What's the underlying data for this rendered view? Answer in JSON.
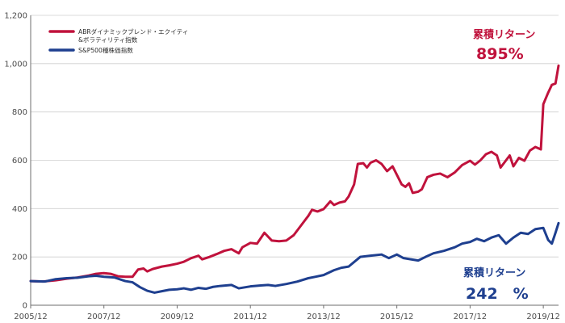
{
  "chart_data": {
    "type": "line",
    "title": "",
    "xlabel": "",
    "ylabel": "",
    "ylim": [
      0,
      1200
    ],
    "y_ticks": [
      0,
      200,
      400,
      600,
      800,
      1000,
      1200
    ],
    "y_tick_labels": [
      "0",
      "200",
      "400",
      "600",
      "800",
      "1,000",
      "1,200"
    ],
    "x_range": [
      2005.917,
      2020.333
    ],
    "x_ticks": [
      2005.917,
      2007.917,
      2009.917,
      2011.917,
      2013.917,
      2015.917,
      2017.917,
      2019.917
    ],
    "x_tick_labels": [
      "2005/12",
      "2007/12",
      "2009/12",
      "2011/12",
      "2013/12",
      "2015/12",
      "2017/12",
      "2019/12"
    ],
    "grid": "horizontal",
    "legend_position": "top-left",
    "series": [
      {
        "name": "ABRダイナミックブレンド・エクイティ＆ボラティリティ指数",
        "color": "#c0123c",
        "points": [
          [
            2005.917,
            100
          ],
          [
            2006.25,
            98
          ],
          [
            2006.6,
            103
          ],
          [
            2006.9,
            110
          ],
          [
            2007.2,
            115
          ],
          [
            2007.5,
            123
          ],
          [
            2007.7,
            130
          ],
          [
            2007.917,
            133
          ],
          [
            2008.1,
            130
          ],
          [
            2008.3,
            120
          ],
          [
            2008.5,
            118
          ],
          [
            2008.7,
            118
          ],
          [
            2008.85,
            148
          ],
          [
            2009.0,
            152
          ],
          [
            2009.1,
            140
          ],
          [
            2009.25,
            150
          ],
          [
            2009.5,
            160
          ],
          [
            2009.7,
            165
          ],
          [
            2009.917,
            172
          ],
          [
            2010.1,
            180
          ],
          [
            2010.3,
            195
          ],
          [
            2010.5,
            205
          ],
          [
            2010.6,
            190
          ],
          [
            2010.8,
            200
          ],
          [
            2011.0,
            212
          ],
          [
            2011.2,
            225
          ],
          [
            2011.4,
            232
          ],
          [
            2011.6,
            215
          ],
          [
            2011.7,
            240
          ],
          [
            2011.917,
            258
          ],
          [
            2012.1,
            255
          ],
          [
            2012.3,
            300
          ],
          [
            2012.5,
            268
          ],
          [
            2012.7,
            265
          ],
          [
            2012.9,
            268
          ],
          [
            2013.1,
            290
          ],
          [
            2013.3,
            330
          ],
          [
            2013.5,
            370
          ],
          [
            2013.6,
            395
          ],
          [
            2013.75,
            388
          ],
          [
            2013.917,
            398
          ],
          [
            2014.1,
            430
          ],
          [
            2014.2,
            415
          ],
          [
            2014.35,
            425
          ],
          [
            2014.5,
            430
          ],
          [
            2014.6,
            450
          ],
          [
            2014.75,
            500
          ],
          [
            2014.85,
            585
          ],
          [
            2015.0,
            588
          ],
          [
            2015.1,
            570
          ],
          [
            2015.2,
            590
          ],
          [
            2015.35,
            600
          ],
          [
            2015.5,
            585
          ],
          [
            2015.65,
            555
          ],
          [
            2015.8,
            575
          ],
          [
            2015.917,
            540
          ],
          [
            2016.05,
            500
          ],
          [
            2016.15,
            490
          ],
          [
            2016.25,
            505
          ],
          [
            2016.35,
            465
          ],
          [
            2016.5,
            470
          ],
          [
            2016.6,
            480
          ],
          [
            2016.75,
            530
          ],
          [
            2016.917,
            540
          ],
          [
            2017.1,
            545
          ],
          [
            2017.3,
            530
          ],
          [
            2017.5,
            550
          ],
          [
            2017.7,
            580
          ],
          [
            2017.917,
            598
          ],
          [
            2018.05,
            582
          ],
          [
            2018.2,
            600
          ],
          [
            2018.35,
            625
          ],
          [
            2018.5,
            635
          ],
          [
            2018.65,
            620
          ],
          [
            2018.75,
            570
          ],
          [
            2018.85,
            590
          ],
          [
            2019.0,
            620
          ],
          [
            2019.1,
            575
          ],
          [
            2019.25,
            610
          ],
          [
            2019.4,
            598
          ],
          [
            2019.55,
            640
          ],
          [
            2019.7,
            655
          ],
          [
            2019.85,
            645
          ],
          [
            2019.917,
            832
          ],
          [
            2020.05,
            880
          ],
          [
            2020.15,
            912
          ],
          [
            2020.25,
            918
          ],
          [
            2020.333,
            992
          ]
        ]
      },
      {
        "name": "S&P500種株価指数",
        "color": "#1e3f8f",
        "points": [
          [
            2005.917,
            100
          ],
          [
            2006.3,
            98
          ],
          [
            2006.6,
            108
          ],
          [
            2006.9,
            112
          ],
          [
            2007.2,
            114
          ],
          [
            2007.5,
            120
          ],
          [
            2007.7,
            122
          ],
          [
            2007.917,
            118
          ],
          [
            2008.2,
            115
          ],
          [
            2008.5,
            100
          ],
          [
            2008.7,
            95
          ],
          [
            2008.9,
            75
          ],
          [
            2009.1,
            60
          ],
          [
            2009.3,
            52
          ],
          [
            2009.5,
            58
          ],
          [
            2009.7,
            64
          ],
          [
            2009.917,
            66
          ],
          [
            2010.1,
            70
          ],
          [
            2010.3,
            64
          ],
          [
            2010.5,
            72
          ],
          [
            2010.7,
            68
          ],
          [
            2010.9,
            76
          ],
          [
            2011.1,
            80
          ],
          [
            2011.4,
            84
          ],
          [
            2011.6,
            70
          ],
          [
            2011.917,
            78
          ],
          [
            2012.2,
            82
          ],
          [
            2012.4,
            84
          ],
          [
            2012.6,
            80
          ],
          [
            2012.9,
            88
          ],
          [
            2013.2,
            98
          ],
          [
            2013.5,
            112
          ],
          [
            2013.7,
            118
          ],
          [
            2013.917,
            125
          ],
          [
            2014.2,
            145
          ],
          [
            2014.4,
            155
          ],
          [
            2014.6,
            160
          ],
          [
            2014.917,
            200
          ],
          [
            2015.2,
            205
          ],
          [
            2015.5,
            210
          ],
          [
            2015.7,
            195
          ],
          [
            2015.917,
            210
          ],
          [
            2016.1,
            195
          ],
          [
            2016.3,
            190
          ],
          [
            2016.5,
            185
          ],
          [
            2016.7,
            200
          ],
          [
            2016.917,
            215
          ],
          [
            2017.2,
            225
          ],
          [
            2017.5,
            240
          ],
          [
            2017.7,
            255
          ],
          [
            2017.917,
            262
          ],
          [
            2018.1,
            275
          ],
          [
            2018.3,
            265
          ],
          [
            2018.5,
            280
          ],
          [
            2018.7,
            290
          ],
          [
            2018.9,
            255
          ],
          [
            2019.1,
            280
          ],
          [
            2019.3,
            300
          ],
          [
            2019.5,
            295
          ],
          [
            2019.7,
            315
          ],
          [
            2019.917,
            320
          ],
          [
            2020.05,
            270
          ],
          [
            2020.15,
            255
          ],
          [
            2020.25,
            300
          ],
          [
            2020.333,
            340
          ]
        ]
      }
    ],
    "legend": [
      {
        "lines": [
          "ABRダイナミックブレンド・エクイティ",
          "&ボラティリティ指数"
        ],
        "color": "#c0123c"
      },
      {
        "lines": [
          "S&P500種株価指数"
        ],
        "color": "#1e3f8f"
      }
    ],
    "annotations": [
      {
        "title": "累積リターン",
        "value": "895%",
        "color": "#c0123c"
      },
      {
        "title": "累積リターン",
        "value": "242　%",
        "color": "#1e3f8f"
      }
    ]
  }
}
